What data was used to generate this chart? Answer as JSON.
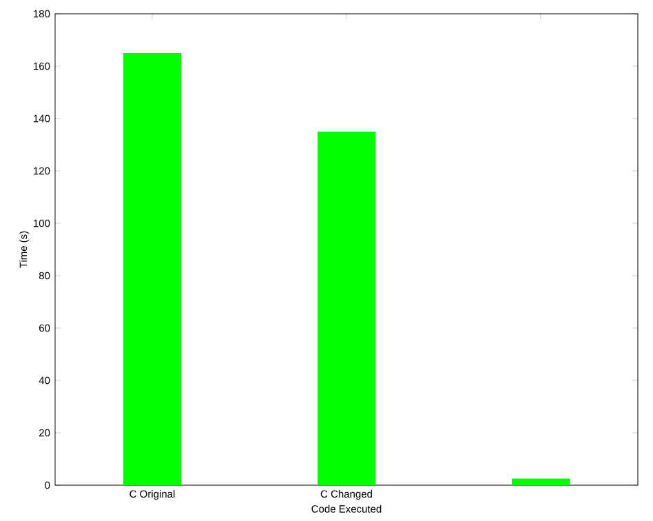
{
  "chart_data": {
    "type": "bar",
    "xlabel": "Code Executed",
    "ylabel": "Time (s)",
    "categories": [
      "C Original",
      "C Changed",
      null
    ],
    "values": [
      165,
      135,
      2.5
    ],
    "color": "#00ff00",
    "ylim": [
      0,
      180
    ],
    "yticks": [
      0,
      20,
      40,
      60,
      80,
      100,
      120,
      140,
      160,
      180
    ],
    "grid": false
  }
}
